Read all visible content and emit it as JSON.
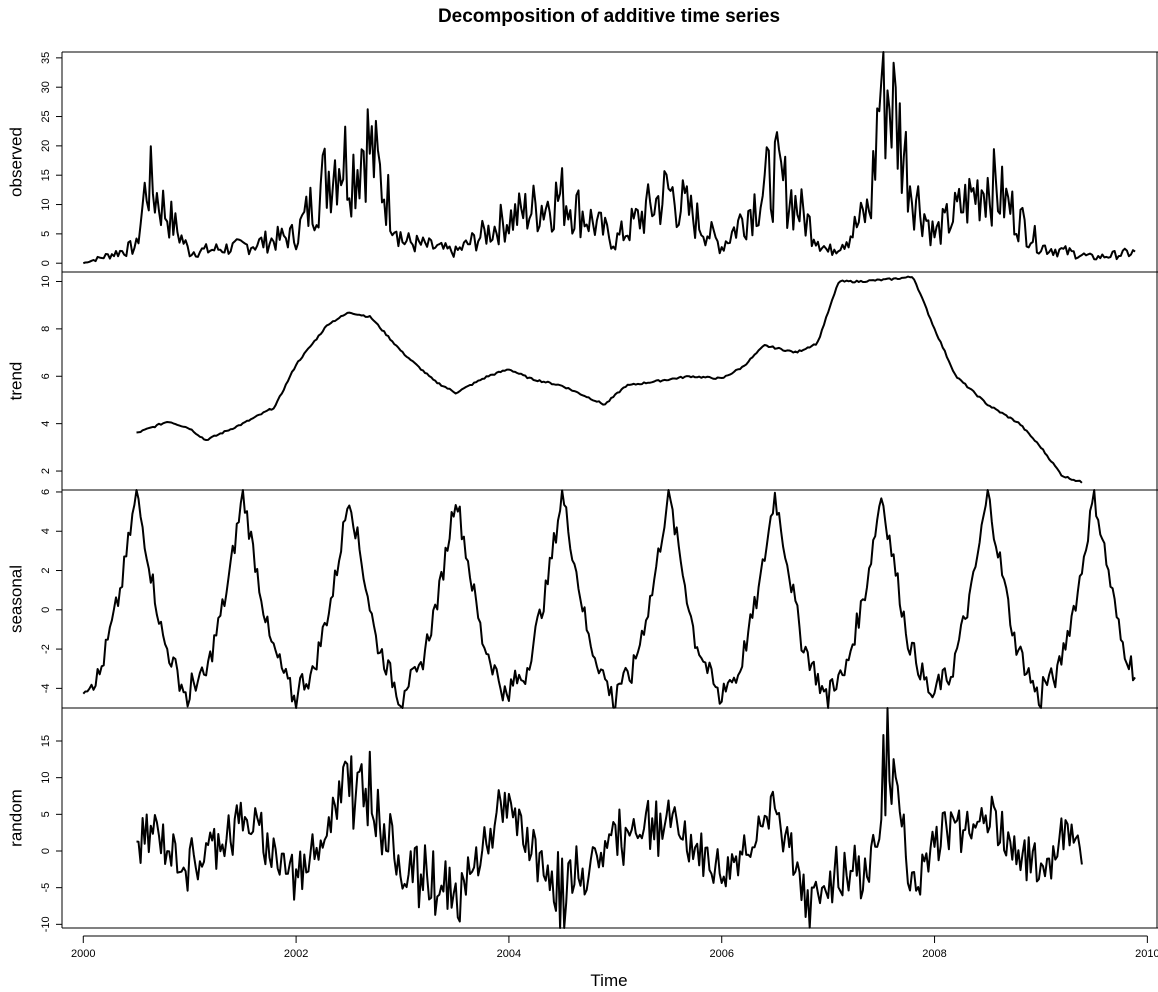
{
  "chart_data": {
    "type": "line",
    "title": "Decomposition of additive time series",
    "xlabel": "Time",
    "xlim": [
      1999.8,
      2010.1
    ],
    "x_ticks": [
      2000,
      2002,
      2004,
      2006,
      2008,
      2010
    ],
    "frequency": 52,
    "grid": false,
    "colors": {
      "line": "#000000",
      "axis": "#000000",
      "background": "#ffffff"
    },
    "panels": [
      {
        "name": "observed",
        "ylabel": "observed",
        "ylim": [
          -1.5,
          36
        ],
        "y_ticks": [
          0,
          5,
          10,
          15,
          20,
          25,
          30,
          35
        ],
        "x": [
          2000.0,
          2000.5,
          2000.6,
          2001.0,
          2001.5,
          2002.0,
          2002.4,
          2002.55,
          2002.65,
          2003.0,
          2003.5,
          2004.0,
          2004.5,
          2005.0,
          2005.5,
          2006.0,
          2006.5,
          2007.0,
          2007.2,
          2007.4,
          2007.5,
          2007.6,
          2007.8,
          2008.0,
          2008.5,
          2009.0,
          2009.5,
          2009.9
        ],
        "values": [
          0,
          3,
          15,
          2,
          3,
          5,
          20,
          17,
          23,
          4,
          2,
          8,
          12,
          4,
          13,
          3,
          16,
          2,
          5,
          10,
          34,
          29,
          13,
          5,
          15,
          3,
          1,
          2
        ]
      },
      {
        "name": "trend",
        "ylabel": "trend",
        "ylim": [
          1.2,
          10.4
        ],
        "y_ticks": [
          2,
          4,
          6,
          8,
          10
        ],
        "x": [
          2000.5,
          2000.8,
          2001.0,
          2001.15,
          2001.5,
          2001.8,
          2002.0,
          2002.3,
          2002.5,
          2002.7,
          2003.0,
          2003.3,
          2003.5,
          2003.8,
          2004.0,
          2004.2,
          2004.5,
          2004.9,
          2005.1,
          2005.4,
          2005.7,
          2006.0,
          2006.2,
          2006.4,
          2006.7,
          2006.9,
          2007.1,
          2007.3,
          2007.6,
          2007.8,
          2008.0,
          2008.2,
          2008.5,
          2008.8,
          2009.0,
          2009.2,
          2009.4
        ],
        "values": [
          3.6,
          4.1,
          3.8,
          3.3,
          4.0,
          4.7,
          6.5,
          8.2,
          8.7,
          8.5,
          7.0,
          5.8,
          5.3,
          6.0,
          6.3,
          5.9,
          5.6,
          4.8,
          5.6,
          5.8,
          6.0,
          5.9,
          6.4,
          7.3,
          7.0,
          7.4,
          10.0,
          10.0,
          10.1,
          10.2,
          8.0,
          6.0,
          4.8,
          4.0,
          3.0,
          1.8,
          1.5
        ]
      },
      {
        "name": "seasonal",
        "ylabel": "seasonal",
        "ylim": [
          -5,
          6.1
        ],
        "y_ticks": [
          -4,
          -2,
          0,
          2,
          4,
          6
        ],
        "x": [
          2000.0,
          2000.15,
          2000.35,
          2000.5,
          2000.75,
          2001.0
        ],
        "values": [
          -3.8,
          -3.4,
          1.0,
          5.9,
          -1.5,
          -4.8
        ]
      },
      {
        "name": "random",
        "ylabel": "random",
        "ylim": [
          -10.5,
          19.5
        ],
        "y_ticks": [
          -10,
          -5,
          0,
          5,
          10,
          15
        ],
        "x": [
          2000.5,
          2000.6,
          2001.0,
          2001.5,
          2002.0,
          2002.4,
          2002.65,
          2003.0,
          2003.5,
          2003.8,
          2004.0,
          2004.5,
          2005.0,
          2005.5,
          2006.0,
          2006.5,
          2006.8,
          2007.0,
          2007.4,
          2007.55,
          2007.65,
          2007.8,
          2008.0,
          2008.5,
          2009.0,
          2009.3,
          2009.4
        ],
        "values": [
          0,
          4,
          -3,
          6,
          -5,
          9,
          13,
          -3,
          -10,
          2,
          8,
          -9,
          3,
          5,
          -4,
          7,
          -8,
          -6,
          -3,
          18,
          10,
          -8,
          3,
          6,
          -4,
          5,
          0
        ]
      }
    ]
  }
}
